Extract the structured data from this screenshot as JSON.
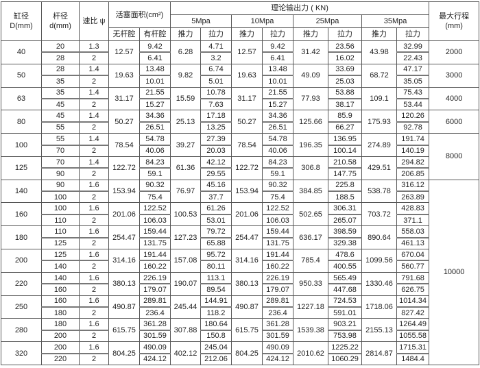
{
  "header": {
    "bore": "缸径\nD(mm)",
    "rod": "杆径\nd(mm)",
    "ratio": "速比 ψ",
    "area": "活塞面积(cm²)",
    "area_no_rod": "无杆腔",
    "area_rod": "有杆腔",
    "force": "理论输出力 ( KN)",
    "pressures": [
      "5Mpa",
      "10Mpa",
      "25Mpa",
      "35Mpa"
    ],
    "push": "推力",
    "pull": "拉力",
    "max_stroke": "最大行程\n(mm)"
  },
  "groups": [
    {
      "D": "40",
      "rows": [
        {
          "d": "20",
          "psi": "1.3",
          "ar": "9.42",
          "pull": [
            "4.71",
            "9.42",
            "23.56",
            "32.99"
          ]
        },
        {
          "d": "28",
          "psi": "2",
          "ar": "6.41",
          "pull": [
            "3.2",
            "6.41",
            "16.02",
            "22.43"
          ]
        }
      ],
      "an": "12.57",
      "push": [
        "6.28",
        "12.57",
        "31.42",
        "43.98"
      ]
    },
    {
      "D": "50",
      "rows": [
        {
          "d": "28",
          "psi": "1.4",
          "ar": "13.48",
          "pull": [
            "6.74",
            "13.48",
            "33.69",
            "47.17"
          ]
        },
        {
          "d": "35",
          "psi": "2",
          "ar": "10.01",
          "pull": [
            "5.01",
            "10.01",
            "25.03",
            "35.05"
          ]
        }
      ],
      "an": "19.63",
      "push": [
        "9.82",
        "19.63",
        "49.09",
        "68.72"
      ]
    },
    {
      "D": "63",
      "rows": [
        {
          "d": "35",
          "psi": "1.4",
          "ar": "21.55",
          "pull": [
            "10.78",
            "21.55",
            "53.88",
            "75.43"
          ]
        },
        {
          "d": "45",
          "psi": "2",
          "ar": "15.27",
          "pull": [
            "7.63",
            "15.27",
            "38.17",
            "53.44"
          ]
        }
      ],
      "an": "31.17",
      "push": [
        "15.59",
        "31.17",
        "77.93",
        "109.1"
      ]
    },
    {
      "D": "80",
      "rows": [
        {
          "d": "45",
          "psi": "1.4",
          "ar": "34.36",
          "pull": [
            "17.18",
            "34.36",
            "85.9",
            "120.26"
          ]
        },
        {
          "d": "55",
          "psi": "2",
          "ar": "26.51",
          "pull": [
            "13.25",
            "26.51",
            "66.27",
            "92.78"
          ]
        }
      ],
      "an": "50.27",
      "push": [
        "25.13",
        "50.27",
        "125.66",
        "175.93"
      ]
    },
    {
      "D": "100",
      "rows": [
        {
          "d": "55",
          "psi": "1.4",
          "ar": "54.78",
          "pull": [
            "27.39",
            "54.78",
            "136.95",
            "191.74"
          ]
        },
        {
          "d": "70",
          "psi": "2",
          "ar": "40.06",
          "pull": [
            "20.03",
            "40.06",
            "100.14",
            "140.19"
          ]
        }
      ],
      "an": "78.54",
      "push": [
        "39.27",
        "78.54",
        "196.35",
        "274.89"
      ]
    },
    {
      "D": "125",
      "rows": [
        {
          "d": "70",
          "psi": "1.4",
          "ar": "84.23",
          "pull": [
            "42.12",
            "84.23",
            "210.58",
            "294.82"
          ]
        },
        {
          "d": "90",
          "psi": "2",
          "ar": "59.1",
          "pull": [
            "29.55",
            "59.1",
            "147.75",
            "206.85"
          ]
        }
      ],
      "an": "122.72",
      "push": [
        "61.36",
        "122.72",
        "306.8",
        "429.51"
      ]
    },
    {
      "D": "140",
      "rows": [
        {
          "d": "90",
          "psi": "1.6",
          "ar": "90.32",
          "pull": [
            "45.16",
            "90.32",
            "225.8",
            "316.12"
          ]
        },
        {
          "d": "100",
          "psi": "2",
          "ar": "75.4",
          "pull": [
            "37.7",
            "75.4",
            "188.5",
            "263.89"
          ]
        }
      ],
      "an": "153.94",
      "push": [
        "76.97",
        "153.94",
        "384.85",
        "538.78"
      ]
    },
    {
      "D": "160",
      "rows": [
        {
          "d": "100",
          "psi": "1.6",
          "ar": "122.52",
          "pull": [
            "61.26",
            "122.52",
            "306.31",
            "428.83"
          ]
        },
        {
          "d": "110",
          "psi": "2",
          "ar": "106.03",
          "pull": [
            "53.01",
            "106.03",
            "265.07",
            "371.1"
          ]
        }
      ],
      "an": "201.06",
      "push": [
        "100.53",
        "201.06",
        "502.65",
        "703.72"
      ]
    },
    {
      "D": "180",
      "rows": [
        {
          "d": "110",
          "psi": "1.6",
          "ar": "159.44",
          "pull": [
            "79.72",
            "159.44",
            "398.59",
            "558.03"
          ]
        },
        {
          "d": "125",
          "psi": "2",
          "ar": "131.75",
          "pull": [
            "65.88",
            "131.75",
            "329.38",
            "461.13"
          ]
        }
      ],
      "an": "254.47",
      "push": [
        "127.23",
        "254.47",
        "636.17",
        "890.64"
      ]
    },
    {
      "D": "200",
      "rows": [
        {
          "d": "125",
          "psi": "1.6",
          "ar": "191.44",
          "pull": [
            "95.72",
            "191.44",
            "478.6",
            "670.04"
          ]
        },
        {
          "d": "140",
          "psi": "2",
          "ar": "160.22",
          "pull": [
            "80.11",
            "160.22",
            "400.55",
            "560.77"
          ]
        }
      ],
      "an": "314.16",
      "push": [
        "157.08",
        "314.16",
        "785.4",
        "1099.56"
      ]
    },
    {
      "D": "220",
      "rows": [
        {
          "d": "140",
          "psi": "1.6",
          "ar": "226.19",
          "pull": [
            "113.1",
            "226.19",
            "565.49",
            "791.68"
          ]
        },
        {
          "d": "160",
          "psi": "2",
          "ar": "179.07",
          "pull": [
            "89.54",
            "179.07",
            "447.68",
            "626.75"
          ]
        }
      ],
      "an": "380.13",
      "push": [
        "190.07",
        "380.13",
        "950.33",
        "1330.46"
      ]
    },
    {
      "D": "250",
      "rows": [
        {
          "d": "160",
          "psi": "1.6",
          "ar": "289.81",
          "pull": [
            "144.91",
            "289.81",
            "724.53",
            "1014.34"
          ]
        },
        {
          "d": "180",
          "psi": "2",
          "ar": "236.4",
          "pull": [
            "118.2",
            "236.4",
            "591.01",
            "827.42"
          ]
        }
      ],
      "an": "490.87",
      "push": [
        "245.44",
        "490.87",
        "1227.18",
        "1718.06"
      ]
    },
    {
      "D": "280",
      "rows": [
        {
          "d": "180",
          "psi": "1.6",
          "ar": "361.28",
          "pull": [
            "180.64",
            "361.28",
            "903.21",
            "1264.49"
          ]
        },
        {
          "d": "200",
          "psi": "2",
          "ar": "301.59",
          "pull": [
            "150.8",
            "301.59",
            "753.98",
            "1055.58"
          ]
        }
      ],
      "an": "615.75",
      "push": [
        "307.88",
        "615.75",
        "1539.38",
        "2155.13"
      ]
    },
    {
      "D": "320",
      "rows": [
        {
          "d": "200",
          "psi": "1.6",
          "ar": "490.09",
          "pull": [
            "245.04",
            "490.09",
            "1225.22",
            "1715.31"
          ]
        },
        {
          "d": "220",
          "psi": "2",
          "ar": "424.12",
          "pull": [
            "212.06",
            "424.12",
            "1060.29",
            "1484.4"
          ]
        }
      ],
      "an": "804.25",
      "push": [
        "402.12",
        "804.25",
        "2010.62",
        "2814.87"
      ]
    }
  ],
  "max_stroke": [
    {
      "value": "2000",
      "groups": 1
    },
    {
      "value": "3000",
      "groups": 1
    },
    {
      "value": "4000",
      "groups": 1
    },
    {
      "value": "6000",
      "groups": 1
    },
    {
      "value": "8000",
      "groups": 2
    },
    {
      "value": "10000",
      "groups": 8
    }
  ]
}
